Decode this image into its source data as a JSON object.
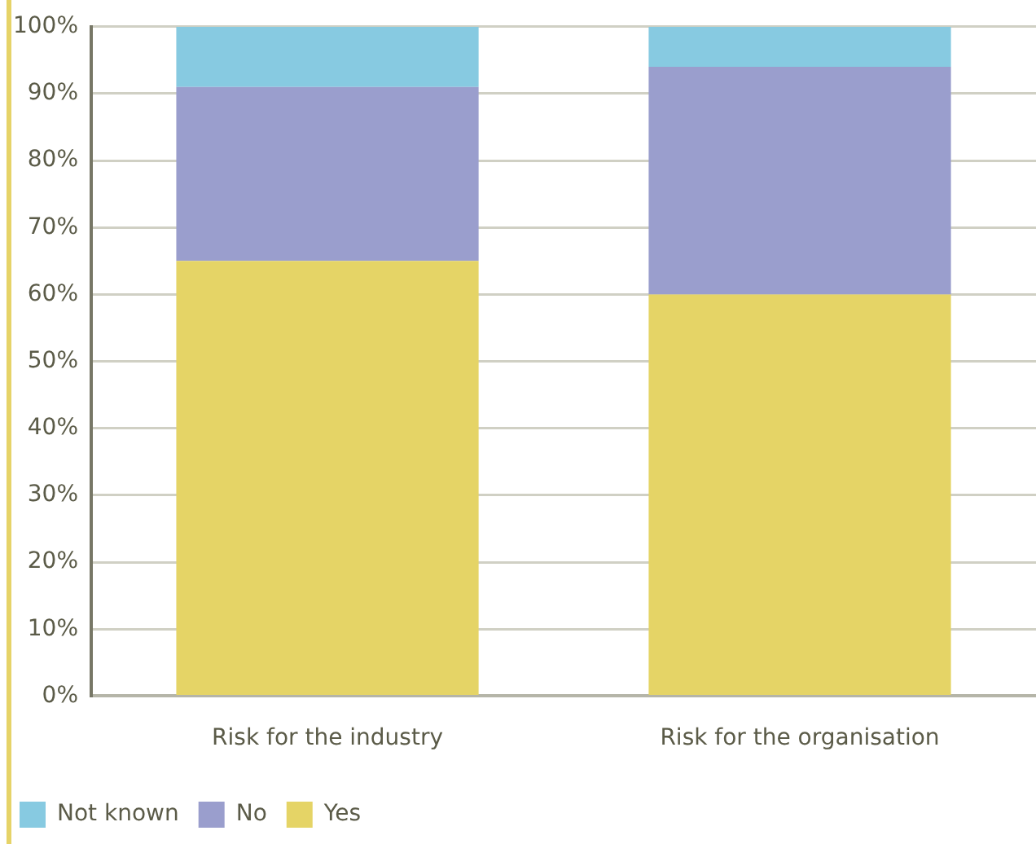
{
  "chart_data": {
    "type": "bar",
    "stacked": true,
    "categories": [
      "Risk for the industry",
      "Risk for the organisation"
    ],
    "series": [
      {
        "name": "Yes",
        "color": "#e5d466",
        "values": [
          65,
          60
        ]
      },
      {
        "name": "No",
        "color": "#9a9ecd",
        "values": [
          26,
          34
        ]
      },
      {
        "name": "Not known",
        "color": "#87cae1",
        "values": [
          9,
          6
        ]
      }
    ],
    "ylim": [
      0,
      100
    ],
    "yticks": [
      {
        "value": 0,
        "label": "0%"
      },
      {
        "value": 10,
        "label": "10%"
      },
      {
        "value": 20,
        "label": "20%"
      },
      {
        "value": 30,
        "label": "30%"
      },
      {
        "value": 40,
        "label": "40%"
      },
      {
        "value": 50,
        "label": "50%"
      },
      {
        "value": 60,
        "label": "60%"
      },
      {
        "value": 70,
        "label": "70%"
      },
      {
        "value": 80,
        "label": "80%"
      },
      {
        "value": 90,
        "label": "90%"
      },
      {
        "value": 100,
        "label": "100%"
      }
    ],
    "grid": "y",
    "legend": "bottom left"
  }
}
